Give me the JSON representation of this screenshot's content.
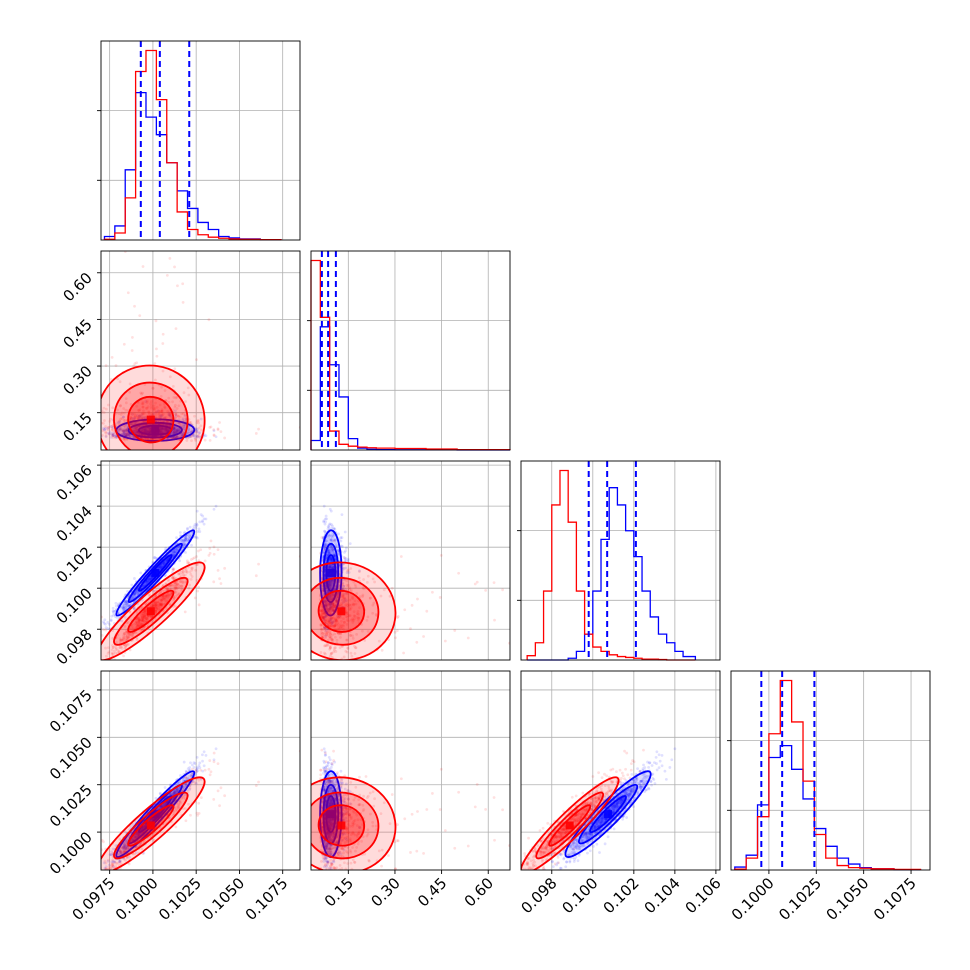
{
  "chart_data": {
    "type": "corner",
    "parameters": 4,
    "colors": {
      "series_a": "#0000ff",
      "series_b": "#ff0000",
      "quantile_lines": "#0000ff"
    },
    "grid": true,
    "series": [
      {
        "color": "#0000ff"
      },
      {
        "color": "#ff0000"
      }
    ],
    "x_tick_labels": [
      [
        "0.0975",
        "0.1000",
        "0.1025",
        "0.1050",
        "0.1075"
      ],
      [
        "0.15",
        "0.30",
        "0.45",
        "0.60"
      ],
      [
        "0.098",
        "0.100",
        "0.102",
        "0.104",
        "0.106"
      ],
      [
        "0.1000",
        "0.1025",
        "0.1050",
        "0.1075"
      ]
    ],
    "y_tick_labels": {
      "row2": [
        "0.15",
        "0.30",
        "0.45",
        "0.60"
      ],
      "row3": [
        "0.098",
        "0.100",
        "0.102",
        "0.104",
        "0.106"
      ],
      "row4": [
        "0.1000",
        "0.1025",
        "0.1050",
        "0.1075"
      ]
    },
    "ranges": [
      [
        0.097,
        0.1085
      ],
      [
        0.03,
        0.67
      ],
      [
        0.0965,
        0.1062
      ],
      [
        0.098,
        0.1085
      ]
    ],
    "quantiles": [
      [
        0.0993,
        0.1004,
        0.1021
      ],
      [
        0.065,
        0.085,
        0.11
      ],
      [
        0.0998,
        0.1007,
        0.1021
      ],
      [
        0.0996,
        0.1007,
        0.1024
      ]
    ],
    "histograms": [
      {
        "bins": [
          0.0972,
          0.0978,
          0.0984,
          0.099,
          0.0996,
          0.1002,
          0.1008,
          0.1014,
          0.102,
          0.1026,
          0.1032,
          0.1038,
          0.1044,
          0.105,
          0.1062,
          0.1074
        ],
        "blue": [
          1,
          4,
          20,
          42,
          35,
          30,
          22,
          14,
          9,
          5,
          3,
          1,
          0.6,
          0.3,
          0.1
        ],
        "red": [
          0.2,
          2,
          12,
          48,
          54,
          40,
          22,
          8,
          3,
          1.5,
          0.8,
          0.5,
          0.3,
          0.2,
          0.1
        ]
      },
      {
        "bins": [
          0.03,
          0.06,
          0.09,
          0.12,
          0.15,
          0.18,
          0.21,
          0.24,
          0.3,
          0.4,
          0.5,
          0.67
        ],
        "blue": [
          5,
          65,
          45,
          28,
          6,
          1,
          0.4,
          0.2,
          0.1,
          0.05,
          0
        ],
        "red": [
          100,
          70,
          10,
          3,
          2,
          1.5,
          1.2,
          1,
          0.8,
          0.5,
          0.2
        ]
      },
      {
        "bins": [
          0.0968,
          0.0972,
          0.0976,
          0.098,
          0.0984,
          0.0988,
          0.0992,
          0.0996,
          0.1,
          0.1004,
          0.1008,
          0.1012,
          0.1016,
          0.102,
          0.1024,
          0.1028,
          0.1032,
          0.1036,
          0.104,
          0.1044,
          0.105
        ],
        "blue": [
          0,
          0,
          0,
          0,
          0,
          0.2,
          1,
          3,
          8,
          14,
          20,
          18,
          15,
          12,
          8,
          5,
          3,
          2,
          1,
          0.4
        ],
        "red": [
          0.5,
          2,
          8,
          18,
          22,
          16,
          8,
          3,
          1.5,
          1,
          0.6,
          0.4,
          0.3,
          0.2,
          0.1,
          0.1,
          0.05,
          0,
          0,
          0
        ]
      },
      {
        "bins": [
          0.0982,
          0.0988,
          0.0994,
          0.1,
          0.1006,
          0.1012,
          0.1018,
          0.1024,
          0.103,
          0.1036,
          0.1042,
          0.1048,
          0.1054,
          0.1066,
          0.108
        ],
        "blue": [
          1,
          5,
          22,
          38,
          42,
          34,
          24,
          14,
          8,
          4,
          2,
          0.8,
          0.4,
          0.1
        ],
        "red": [
          0.3,
          4,
          18,
          46,
          64,
          50,
          30,
          12,
          4,
          1.5,
          0.8,
          0.6,
          0.4,
          0.2
        ]
      }
    ]
  }
}
